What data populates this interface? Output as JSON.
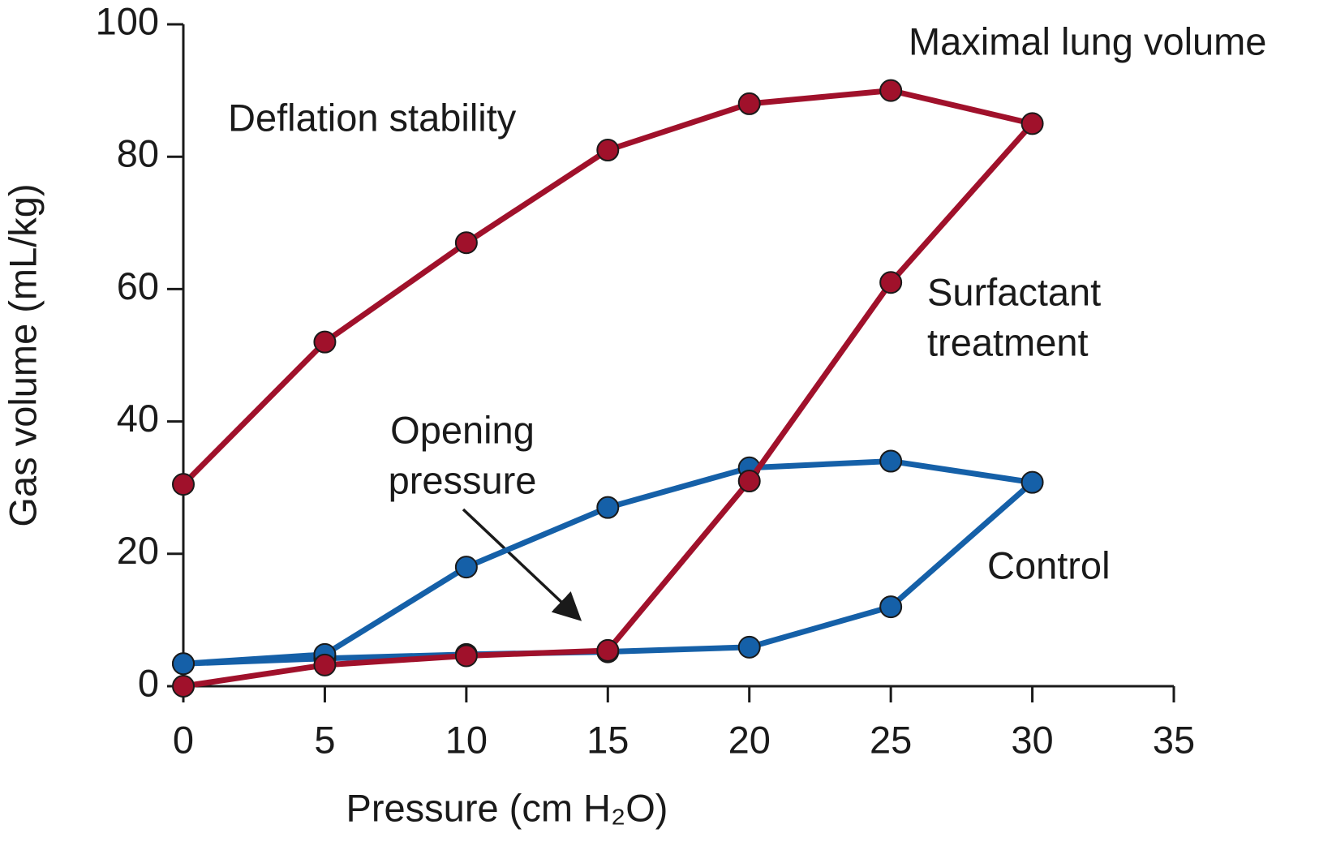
{
  "chart_data": {
    "type": "line",
    "x_label": "Pressure (cm H₂O)",
    "y_label": "Gas volume (mL/kg)",
    "xlim": [
      0,
      35
    ],
    "xticks": [
      0,
      5,
      10,
      15,
      20,
      25,
      30,
      35
    ],
    "ylim": [
      0,
      100
    ],
    "yticks": [
      0,
      20,
      40,
      60,
      80,
      100
    ],
    "series": [
      {
        "color": "#1560a8",
        "x": [
          0,
          5,
          10,
          15,
          20,
          25,
          30,
          25,
          20,
          15,
          10,
          5,
          0
        ],
        "values": [
          3.4,
          4.2,
          4.8,
          5.2,
          5.9,
          12,
          30.8,
          34,
          33,
          27,
          18,
          4.8,
          3.4
        ]
      },
      {
        "color": "#a0112b",
        "x": [
          0,
          5,
          10,
          15,
          20,
          25,
          30,
          25,
          20,
          15,
          10,
          5,
          0
        ],
        "values": [
          0,
          3.2,
          4.6,
          5.4,
          31,
          61,
          85,
          90,
          88,
          81,
          67,
          52,
          30.5
        ]
      }
    ],
    "annotations": [
      {
        "lines": [
          "Maximal lung volume"
        ]
      },
      {
        "lines": [
          "Deflation stability"
        ]
      },
      {
        "lines": [
          "Surfactant",
          "treatment"
        ]
      },
      {
        "lines": [
          "Opening",
          "pressure"
        ]
      },
      {
        "lines": [
          "Control"
        ]
      }
    ]
  }
}
